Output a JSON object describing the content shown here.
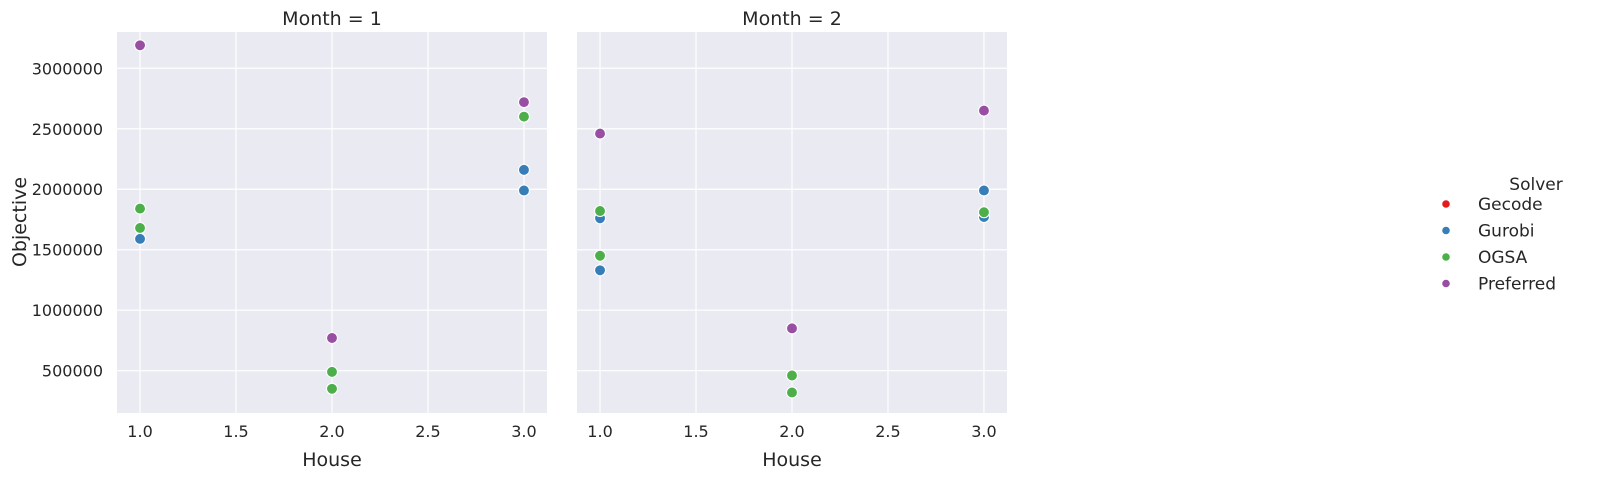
{
  "chart_data": {
    "type": "scatter",
    "ylabel": "Objective",
    "xlabel": "House",
    "xlim": [
      0.88,
      3.12
    ],
    "ylim": [
      150000,
      3300000
    ],
    "xticks": [
      "1.0",
      "1.5",
      "2.0",
      "2.5",
      "3.0"
    ],
    "xtick_values": [
      1.0,
      1.5,
      2.0,
      2.5,
      3.0
    ],
    "yticks": [
      "500000",
      "1000000",
      "1500000",
      "2000000",
      "2500000",
      "3000000"
    ],
    "ytick_values": [
      500000,
      1000000,
      1500000,
      2000000,
      2500000,
      3000000
    ],
    "grid": true,
    "legend": {
      "title": "Solver",
      "placement": "right",
      "entries": [
        {
          "name": "Gecode",
          "color": "#e41a1c"
        },
        {
          "name": "Gurobi",
          "color": "#377eb8"
        },
        {
          "name": "OGSA",
          "color": "#4daf4a"
        },
        {
          "name": "Preferred",
          "color": "#984ea3"
        }
      ]
    },
    "panels": [
      {
        "title": "Month = 1",
        "series": [
          {
            "name": "Gecode",
            "points": []
          },
          {
            "name": "Gurobi",
            "points": [
              [
                1,
                1590000
              ],
              [
                3,
                1990000
              ],
              [
                3,
                2160000
              ]
            ]
          },
          {
            "name": "OGSA",
            "points": [
              [
                1,
                1840000
              ],
              [
                1,
                1680000
              ],
              [
                2,
                490000
              ],
              [
                2,
                350000
              ],
              [
                3,
                2600000
              ]
            ]
          },
          {
            "name": "Preferred",
            "points": [
              [
                1,
                3190000
              ],
              [
                2,
                770000
              ],
              [
                3,
                2720000
              ]
            ]
          }
        ]
      },
      {
        "title": "Month = 2",
        "series": [
          {
            "name": "Gecode",
            "points": []
          },
          {
            "name": "Gurobi",
            "points": [
              [
                1,
                1760000
              ],
              [
                1,
                1330000
              ],
              [
                3,
                1770000
              ],
              [
                3,
                1990000
              ]
            ]
          },
          {
            "name": "OGSA",
            "points": [
              [
                1,
                1820000
              ],
              [
                1,
                1450000
              ],
              [
                2,
                460000
              ],
              [
                2,
                320000
              ],
              [
                3,
                1810000
              ]
            ]
          },
          {
            "name": "Preferred",
            "points": [
              [
                1,
                2460000
              ],
              [
                2,
                850000
              ],
              [
                3,
                2650000
              ]
            ]
          }
        ]
      }
    ]
  }
}
